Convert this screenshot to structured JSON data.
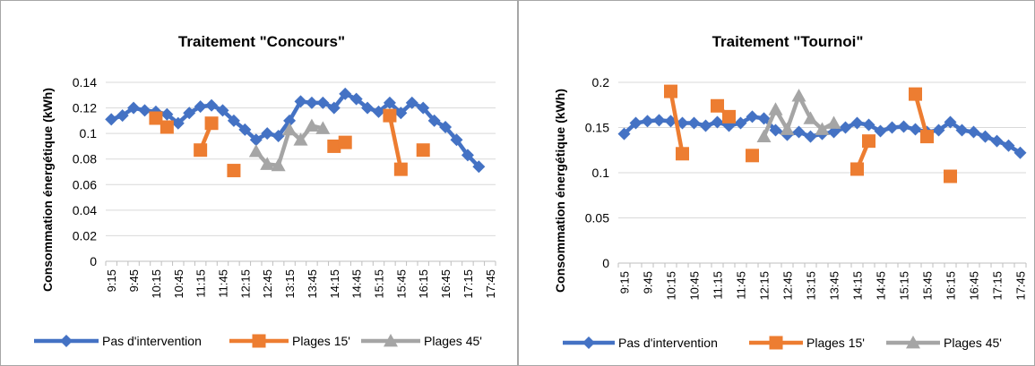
{
  "colors": {
    "series_no_intervention": "#4472C4",
    "series_plages15": "#ED7D31",
    "series_plages45": "#A5A5A5",
    "grid": "#d9d9d9",
    "axis": "#bfbfbf",
    "text": "#000000",
    "border": "#a6a6a6"
  },
  "chart_data": [
    {
      "type": "line",
      "title": "Traitement \"Concours\"",
      "ylabel": "Consommation énergétique (kWh)",
      "xlabel": "",
      "ylim": [
        0,
        0.14
      ],
      "yticks": [
        0,
        0.02,
        0.04,
        0.06,
        0.08,
        0.1,
        0.12,
        0.14
      ],
      "ytick_labels": [
        "0",
        "0.02",
        "0.04",
        "0.06",
        "0.08",
        "0.1",
        "0.12",
        "0.14"
      ],
      "grid": true,
      "legend_position": "bottom",
      "x": [
        "9:15",
        "9:30",
        "9:45",
        "10:00",
        "10:15",
        "10:30",
        "10:45",
        "11:00",
        "11:15",
        "11:30",
        "11:45",
        "12:00",
        "12:15",
        "12:30",
        "12:45",
        "13:00",
        "13:15",
        "13:30",
        "13:45",
        "14:00",
        "14:15",
        "14:30",
        "14:45",
        "15:00",
        "15:15",
        "15:30",
        "15:45",
        "16:00",
        "16:15",
        "16:30",
        "16:45",
        "17:00",
        "17:15",
        "17:30",
        "17:45"
      ],
      "x_tick_labels": [
        "9:15",
        "9:45",
        "10:15",
        "10:45",
        "11:15",
        "11:45",
        "12:15",
        "12:45",
        "13:15",
        "13:45",
        "14:15",
        "14:45",
        "15:15",
        "15:45",
        "16:15",
        "16:45",
        "17:15",
        "17:45"
      ],
      "series": [
        {
          "name": "Pas d'intervention",
          "marker": "diamond",
          "color": "#4472C4",
          "values": [
            0.111,
            0.114,
            0.12,
            0.118,
            0.117,
            0.115,
            0.108,
            0.116,
            0.121,
            0.122,
            0.118,
            0.11,
            0.103,
            0.095,
            0.1,
            0.098,
            0.11,
            0.125,
            0.124,
            0.124,
            0.12,
            0.131,
            0.127,
            0.12,
            0.117,
            0.124,
            0.116,
            0.124,
            0.12,
            0.11,
            0.105,
            0.095,
            0.083,
            0.074,
            null
          ]
        },
        {
          "name": "Plages 15'",
          "marker": "square",
          "color": "#ED7D31",
          "values": [
            null,
            null,
            null,
            null,
            0.112,
            0.105,
            null,
            null,
            0.087,
            0.108,
            null,
            0.071,
            null,
            null,
            null,
            null,
            null,
            null,
            null,
            null,
            0.09,
            0.093,
            null,
            null,
            null,
            0.114,
            0.072,
            null,
            0.087,
            null,
            null,
            null,
            null,
            null,
            null
          ]
        },
        {
          "name": "Plages 45'",
          "marker": "triangle",
          "color": "#A5A5A5",
          "values": [
            null,
            null,
            null,
            null,
            null,
            null,
            null,
            null,
            null,
            null,
            null,
            null,
            null,
            0.086,
            0.076,
            0.075,
            0.103,
            0.095,
            0.106,
            0.104,
            null,
            null,
            null,
            null,
            null,
            null,
            null,
            null,
            null,
            null,
            null,
            null,
            null,
            null,
            null
          ]
        }
      ]
    },
    {
      "type": "line",
      "title": "Traitement \"Tournoi\"",
      "ylabel": "Consommation énergétique (kWh)",
      "xlabel": "",
      "ylim": [
        0,
        0.2
      ],
      "yticks": [
        0,
        0.05,
        0.1,
        0.15,
        0.2
      ],
      "ytick_labels": [
        "0",
        "0.05",
        "0.1",
        "0.15",
        "0.2"
      ],
      "grid": true,
      "legend_position": "bottom",
      "x": [
        "9:15",
        "9:30",
        "9:45",
        "10:00",
        "10:15",
        "10:30",
        "10:45",
        "11:00",
        "11:15",
        "11:30",
        "11:45",
        "12:00",
        "12:15",
        "12:30",
        "12:45",
        "13:00",
        "13:15",
        "13:30",
        "13:45",
        "14:00",
        "14:15",
        "14:30",
        "14:45",
        "15:00",
        "15:15",
        "15:30",
        "15:45",
        "16:00",
        "16:15",
        "16:30",
        "16:45",
        "17:00",
        "17:15",
        "17:30",
        "17:45"
      ],
      "x_tick_labels": [
        "9:15",
        "9:45",
        "10:15",
        "10:45",
        "11:15",
        "11:45",
        "12:15",
        "12:45",
        "13:15",
        "13:45",
        "14:15",
        "14:45",
        "15:15",
        "15:45",
        "16:15",
        "16:45",
        "17:15",
        "17:45"
      ],
      "series": [
        {
          "name": "Pas d'intervention",
          "marker": "diamond",
          "color": "#4472C4",
          "values": [
            0.143,
            0.155,
            0.157,
            0.158,
            0.157,
            0.155,
            0.155,
            0.152,
            0.156,
            0.152,
            0.155,
            0.162,
            0.16,
            0.147,
            0.142,
            0.145,
            0.14,
            0.143,
            0.145,
            0.15,
            0.155,
            0.153,
            0.146,
            0.15,
            0.151,
            0.148,
            0.145,
            0.147,
            0.156,
            0.147,
            0.145,
            0.14,
            0.135,
            0.13,
            0.122
          ]
        },
        {
          "name": "Plages 15'",
          "marker": "square",
          "color": "#ED7D31",
          "values": [
            null,
            null,
            null,
            null,
            0.19,
            0.121,
            null,
            null,
            0.174,
            0.162,
            null,
            0.119,
            null,
            null,
            null,
            null,
            null,
            null,
            null,
            null,
            0.104,
            0.135,
            null,
            null,
            null,
            0.187,
            0.14,
            null,
            0.096,
            null,
            null,
            null,
            null,
            null,
            null
          ]
        },
        {
          "name": "Plages 45'",
          "marker": "triangle",
          "color": "#A5A5A5",
          "values": [
            null,
            null,
            null,
            null,
            null,
            null,
            null,
            null,
            null,
            null,
            null,
            null,
            0.14,
            0.17,
            0.148,
            0.185,
            0.16,
            0.148,
            0.155,
            null,
            null,
            null,
            null,
            null,
            null,
            null,
            null,
            null,
            null,
            null,
            null,
            null,
            null,
            null,
            null
          ]
        }
      ]
    }
  ]
}
